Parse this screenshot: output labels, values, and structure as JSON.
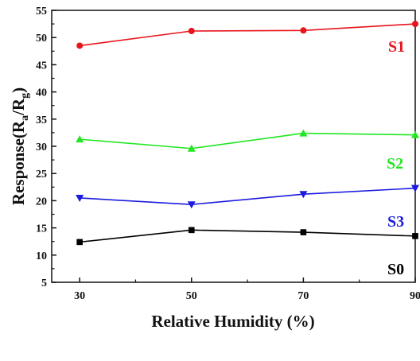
{
  "chart_data": {
    "type": "line",
    "xlabel": "Relative Humidity (%)",
    "ylabel": {
      "main": "Response(R",
      "sub1": "a",
      "mid": "/R",
      "sub2": "g",
      "end": ")"
    },
    "x": [
      30,
      50,
      70,
      90
    ],
    "xticks": [
      30,
      50,
      70,
      90
    ],
    "xlim": [
      25,
      90
    ],
    "ylim": [
      5,
      55
    ],
    "yticks": [
      5,
      10,
      15,
      20,
      25,
      30,
      35,
      40,
      45,
      50,
      55
    ],
    "grid": false,
    "series": [
      {
        "name": "S1",
        "color": "#e8141c",
        "marker": "circle",
        "values": [
          48.5,
          51.2,
          51.3,
          52.5
        ]
      },
      {
        "name": "S2",
        "color": "#22e622",
        "marker": "triangle-up",
        "values": [
          31.3,
          29.6,
          32.4,
          32.1
        ]
      },
      {
        "name": "S3",
        "color": "#1a1ae0",
        "marker": "triangle-down",
        "values": [
          20.5,
          19.3,
          21.2,
          22.3
        ]
      },
      {
        "name": "S0",
        "color": "#000000",
        "marker": "square",
        "values": [
          12.4,
          14.6,
          14.2,
          13.5
        ]
      }
    ]
  }
}
